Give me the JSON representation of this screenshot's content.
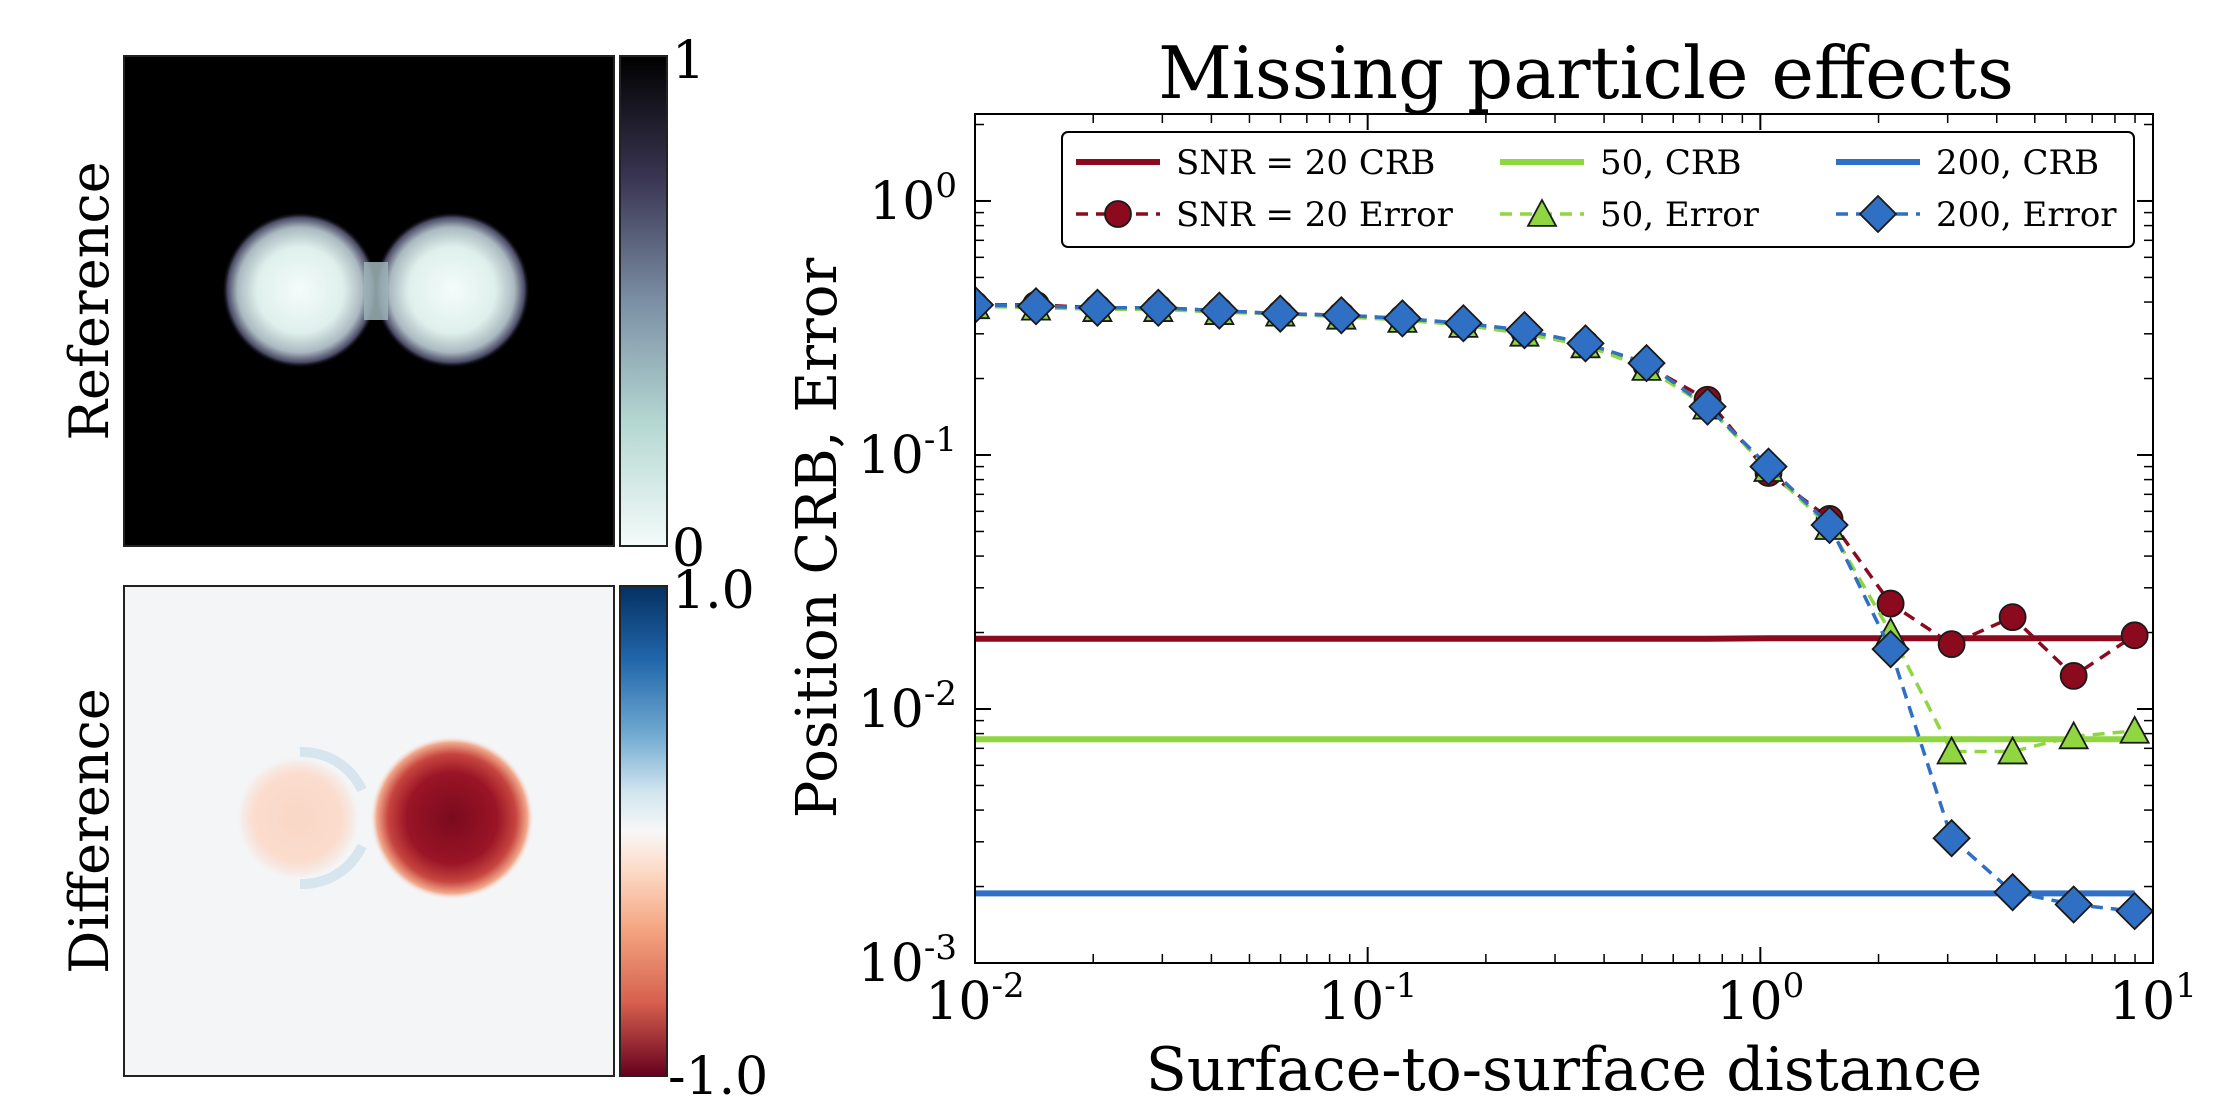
{
  "panels": {
    "reference": {
      "label": "Reference",
      "colorbar": {
        "max_label": "1",
        "min_label": "0"
      }
    },
    "difference": {
      "label": "Difference",
      "colorbar": {
        "max_label": "1.0",
        "min_label": "-1.0"
      }
    }
  },
  "colors": {
    "snr20": "#8b0a1e",
    "snr50": "#8fd640",
    "snr200": "#2f6fc4",
    "ref_dark": "#000000",
    "ref_light": "#dff0ec",
    "diff_red": "#800d20",
    "diff_blue": "#0b4c8c"
  },
  "chart_data": {
    "type": "line",
    "title": "Missing particle effects",
    "xlabel": "Surface-to-surface distance",
    "ylabel": "Position CRB, Error",
    "xscale": "log",
    "yscale": "log",
    "xlim": [
      0.01,
      10
    ],
    "ylim": [
      0.001,
      2.2
    ],
    "xticks": [
      {
        "value": 0.01,
        "base": "10",
        "exp": "-2"
      },
      {
        "value": 0.1,
        "base": "10",
        "exp": "-1"
      },
      {
        "value": 1,
        "base": "10",
        "exp": "0"
      },
      {
        "value": 10,
        "base": "10",
        "exp": "1"
      }
    ],
    "yticks": [
      {
        "value": 0.001,
        "base": "10",
        "exp": "-3"
      },
      {
        "value": 0.01,
        "base": "10",
        "exp": "-2"
      },
      {
        "value": 0.1,
        "base": "10",
        "exp": "-1"
      },
      {
        "value": 1,
        "base": "10",
        "exp": "0"
      }
    ],
    "legend_position": "top",
    "x": [
      0.01,
      0.0143,
      0.0205,
      0.0293,
      0.0419,
      0.0599,
      0.0857,
      0.1226,
      0.1753,
      0.2508,
      0.3587,
      0.513,
      0.7337,
      1.049,
      1.501,
      2.147,
      3.07,
      4.39,
      6.28,
      8.98
    ],
    "series": [
      {
        "name": "SNR = 20 CRB",
        "legend": "SNR = 20 CRB",
        "color_key": "snr20",
        "style": "solid",
        "values": [
          0.0189,
          0.0189,
          0.0189,
          0.0189,
          0.0189,
          0.0189,
          0.0189,
          0.0189,
          0.0189,
          0.0189,
          0.0189,
          0.0189,
          0.0189,
          0.019,
          0.019,
          0.019,
          0.019,
          0.019,
          0.019,
          0.019
        ]
      },
      {
        "name": "SNR = 20 Error",
        "legend": "SNR = 20 Error",
        "color_key": "snr20",
        "style": "dashed",
        "marker": "circle",
        "values": [
          0.39,
          0.39,
          0.38,
          0.38,
          0.37,
          0.36,
          0.355,
          0.345,
          0.325,
          0.305,
          0.275,
          0.225,
          0.165,
          0.085,
          0.056,
          0.026,
          0.018,
          0.023,
          0.0135,
          0.0195
        ]
      },
      {
        "name": "50, CRB",
        "legend": "50, CRB",
        "color_key": "snr50",
        "style": "solid",
        "values": [
          0.0076,
          0.0076,
          0.0076,
          0.0076,
          0.0076,
          0.0076,
          0.0076,
          0.0076,
          0.0076,
          0.0076,
          0.0076,
          0.0076,
          0.0076,
          0.0076,
          0.0076,
          0.0076,
          0.0076,
          0.0076,
          0.0076,
          0.0076
        ]
      },
      {
        "name": "50, Error",
        "legend": "50, Error",
        "color_key": "snr50",
        "style": "dashed",
        "marker": "triangle",
        "values": [
          0.385,
          0.38,
          0.375,
          0.375,
          0.365,
          0.36,
          0.35,
          0.34,
          0.325,
          0.3,
          0.27,
          0.22,
          0.155,
          0.088,
          0.052,
          0.02,
          0.0068,
          0.0068,
          0.0078,
          0.0082
        ]
      },
      {
        "name": "200, CRB",
        "legend": "200, CRB",
        "color_key": "snr200",
        "style": "solid",
        "values": [
          0.00188,
          0.00188,
          0.00188,
          0.00188,
          0.00188,
          0.00188,
          0.00188,
          0.00188,
          0.00188,
          0.00188,
          0.00188,
          0.00188,
          0.00188,
          0.00188,
          0.00188,
          0.00188,
          0.00188,
          0.00188,
          0.00188,
          0.00188
        ]
      },
      {
        "name": "200, Error",
        "legend": "200, Error",
        "color_key": "snr200",
        "style": "dashed",
        "marker": "diamond",
        "values": [
          0.39,
          0.385,
          0.38,
          0.38,
          0.37,
          0.36,
          0.355,
          0.345,
          0.33,
          0.31,
          0.275,
          0.23,
          0.155,
          0.09,
          0.053,
          0.0172,
          0.0031,
          0.0019,
          0.0017,
          0.0016
        ]
      }
    ]
  }
}
